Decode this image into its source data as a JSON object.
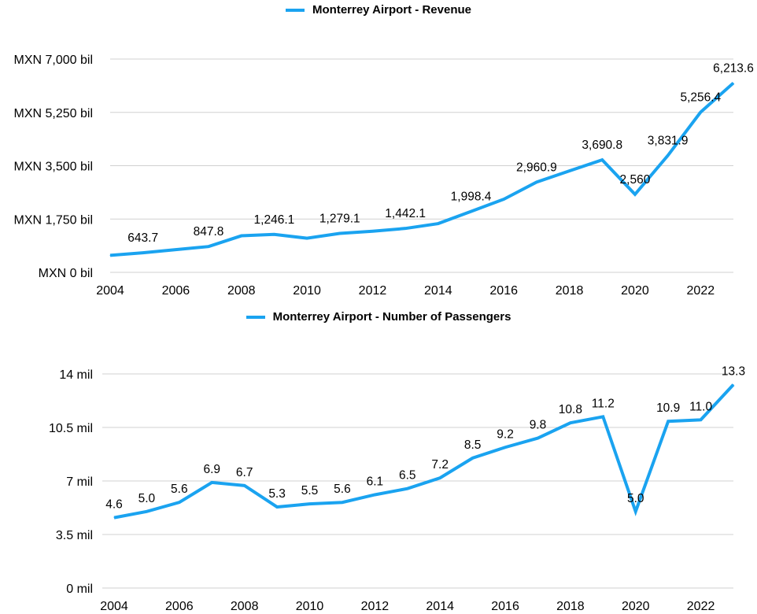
{
  "chart_data": [
    {
      "type": "line",
      "legend": "Monterrey Airport - Revenue",
      "color": "#1aa3f0",
      "x": [
        2004,
        2005,
        2006,
        2007,
        2008,
        2009,
        2010,
        2011,
        2012,
        2013,
        2014,
        2015,
        2016,
        2017,
        2018,
        2019,
        2020,
        2021,
        2022,
        2023
      ],
      "values": [
        560,
        643.7,
        745,
        847.8,
        1200,
        1246.1,
        1120,
        1279.1,
        1350,
        1442.1,
        1600,
        1998.4,
        2400,
        2960.9,
        3330,
        3690.8,
        2560,
        3831.9,
        5256.4,
        6213.6
      ],
      "data_labels": [
        null,
        "643.7",
        null,
        "847.8",
        null,
        "1,246.1",
        null,
        "1,279.1",
        null,
        "1,442.1",
        null,
        "1,998.4",
        null,
        "2,960.9",
        null,
        "3,690.8",
        "2,560",
        "3,831.9",
        "5,256.4",
        "6,213.6"
      ],
      "ylim": [
        0,
        7000
      ],
      "yticks": [
        0,
        1750,
        3500,
        5250,
        7000
      ],
      "ytick_labels": [
        "MXN 0 bil",
        "MXN 1,750 bil",
        "MXN 3,500 bil",
        "MXN 5,250 bil",
        "MXN 7,000 bil"
      ],
      "xticks": [
        2004,
        2006,
        2008,
        2010,
        2012,
        2014,
        2016,
        2018,
        2020,
        2022
      ],
      "xtick_labels": [
        "2004",
        "2006",
        "2008",
        "2010",
        "2012",
        "2014",
        "2016",
        "2018",
        "2020",
        "2022"
      ],
      "grid": true,
      "legend_position": "top-center"
    },
    {
      "type": "line",
      "legend": "Monterrey Airport - Number of Passengers",
      "color": "#1aa3f0",
      "x": [
        2004,
        2005,
        2006,
        2007,
        2008,
        2009,
        2010,
        2011,
        2012,
        2013,
        2014,
        2015,
        2016,
        2017,
        2018,
        2019,
        2020,
        2021,
        2022,
        2023
      ],
      "values": [
        4.6,
        5.0,
        5.6,
        6.9,
        6.7,
        5.3,
        5.5,
        5.6,
        6.1,
        6.5,
        7.2,
        8.5,
        9.2,
        9.8,
        10.8,
        11.2,
        5.0,
        10.9,
        11.0,
        13.3
      ],
      "data_labels": [
        "4.6",
        "5.0",
        "5.6",
        "6.9",
        "6.7",
        "5.3",
        "5.5",
        "5.6",
        "6.1",
        "6.5",
        "7.2",
        "8.5",
        "9.2",
        "9.8",
        "10.8",
        "11.2",
        "5.0",
        "10.9",
        "11.0",
        "13.3"
      ],
      "ylim": [
        0,
        14
      ],
      "yticks": [
        0,
        3.5,
        7,
        10.5,
        14
      ],
      "ytick_labels": [
        "0 mil",
        "3.5 mil",
        "7 mil",
        "10.5 mil",
        "14 mil"
      ],
      "xticks": [
        2004,
        2006,
        2008,
        2010,
        2012,
        2014,
        2016,
        2018,
        2020,
        2022
      ],
      "xtick_labels": [
        "2004",
        "2006",
        "2008",
        "2010",
        "2012",
        "2014",
        "2016",
        "2018",
        "2020",
        "2022"
      ],
      "grid": true,
      "legend_position": "top-center"
    }
  ]
}
